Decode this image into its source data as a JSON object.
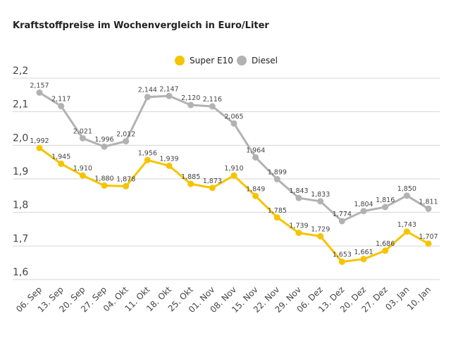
{
  "chart_data": {
    "type": "line",
    "title": "Kraftstoffpreise im Wochenvergleich in Euro/Liter",
    "xlabel": "",
    "ylabel": "",
    "ylim": [
      1.6,
      2.2
    ],
    "yticks": [
      "1,6",
      "1,7",
      "1,8",
      "1,9",
      "2,0",
      "2,1",
      "2,2"
    ],
    "grid": "horizontal",
    "legend": "top-center",
    "categories": [
      "06. Sep",
      "13. Sep",
      "20. Sep",
      "27. Sep",
      "04. Okt",
      "11. Okt",
      "18. Okt",
      "25. Okt",
      "01. Nov",
      "08. Nov",
      "15. Nov",
      "22. Nov",
      "29. Nov",
      "06. Dez",
      "13. Dez",
      "20. Dez",
      "27. Dez",
      "03. Jan",
      "10. Jan"
    ],
    "series": [
      {
        "name": "Super E10",
        "color": "#f5c400",
        "values": [
          1.992,
          1.945,
          1.91,
          1.88,
          1.878,
          1.956,
          1.939,
          1.885,
          1.873,
          1.91,
          1.849,
          1.785,
          1.739,
          1.729,
          1.653,
          1.661,
          1.686,
          1.743,
          1.707
        ]
      },
      {
        "name": "Diesel",
        "color": "#b2b2b2",
        "values": [
          2.157,
          2.117,
          2.021,
          1.996,
          2.012,
          2.144,
          2.147,
          2.12,
          2.116,
          2.065,
          1.964,
          1.899,
          1.843,
          1.833,
          1.774,
          1.804,
          1.816,
          1.85,
          1.811
        ]
      }
    ]
  }
}
